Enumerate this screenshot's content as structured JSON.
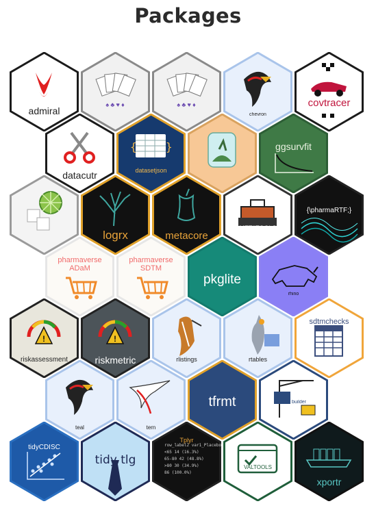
{
  "header": {
    "title": "Packages"
  },
  "packages": [
    {
      "label": "admiral",
      "border": "#1b1b1b",
      "fill": "#ffffff",
      "text": "#222222",
      "size": 14,
      "ty": 78,
      "icon": "red-bird-icon"
    },
    {
      "label": "",
      "border": "#8a8a8a",
      "fill": "#f1f1f1",
      "text": "#6a4ab0",
      "size": 11,
      "ty": 0,
      "icon": "playing-cards-icon"
    },
    {
      "label": "",
      "border": "#8a8a8a",
      "fill": "#f1f1f1",
      "text": "#6a4ab0",
      "size": 11,
      "ty": 0,
      "icon": "playing-cards-icon"
    },
    {
      "label": "chevron",
      "border": "#a9c4ea",
      "fill": "#e8f0fc",
      "text": "#222222",
      "size": 7,
      "ty": 88,
      "icon": "bird-icon"
    },
    {
      "label": "covtracer",
      "border": "#1b1b1b",
      "fill": "#ffffff",
      "text": "#c0143c",
      "size": 15,
      "ty": 66,
      "icon": "race-car-icon"
    },
    {
      "label": "datacutr",
      "border": "#1b1b1b",
      "fill": "#ffffff",
      "text": "#222222",
      "size": 14,
      "ty": 82,
      "icon": "scissors-icon"
    },
    {
      "label": "datasetjson",
      "border": "#e0a12a",
      "fill": "#163a6e",
      "text": "#f2b84b",
      "size": 9,
      "ty": 78,
      "icon": "json-grid-icon"
    },
    {
      "label": "",
      "border": "#d9a25e",
      "fill": "#f7c896",
      "text": "#3a6b4a",
      "size": 7,
      "ty": 0,
      "icon": "terrarium-icon"
    },
    {
      "label": "ggsurvfit",
      "border": "#2d5e36",
      "fill": "#3f7a46",
      "text": "#eaf2e2",
      "size": 14,
      "ty": 40,
      "icon": "survival-curve-icon"
    },
    {
      "label": "",
      "border": "#9a9a9a",
      "fill": "#f4f4f4",
      "text": "#555555",
      "size": 8,
      "ty": 0,
      "icon": "lime-ice-icon"
    },
    {
      "label": "logrx",
      "border": "#e0a12a",
      "fill": "#111111",
      "text": "#e8a33a",
      "size": 17,
      "ty": 78,
      "icon": "tree-icon"
    },
    {
      "label": "metacore",
      "border": "#e0a12a",
      "fill": "#111111",
      "text": "#e8a33a",
      "size": 15,
      "ty": 80,
      "icon": "apple-core-icon"
    },
    {
      "label": "METATOOLS",
      "border": "#333333",
      "fill": "#ffffff",
      "text": "#ffffff",
      "size": 9,
      "ty": 72,
      "icon": "toolbox-icon"
    },
    {
      "label": "{\\pharmaRTF;}",
      "border": "#222222",
      "fill": "#111111",
      "text": "#ffffff",
      "size": 10,
      "ty": 46,
      "icon": "wave-icon"
    },
    {
      "label": "pharmaverse ADaM",
      "border": "#e6e6e6",
      "fill": "#fcfaf6",
      "text": "#f06a6a",
      "size": 11,
      "ty": 28,
      "icon": "cart-icon"
    },
    {
      "label": "pharmaverse SDTM",
      "border": "#e6e6e6",
      "fill": "#fcfaf6",
      "text": "#f06a6a",
      "size": 11,
      "ty": 28,
      "icon": "cart-icon"
    },
    {
      "label": "pkglite",
      "border": "#137a6c",
      "fill": "#168a79",
      "text": "#ffffff",
      "size": 19,
      "ty": 52,
      "icon": "none"
    },
    {
      "label": "rhino",
      "border": "#8c81f2",
      "fill": "#8a7ff5",
      "text": "#111111",
      "size": 7,
      "ty": 80,
      "icon": "rhino-icon"
    },
    {
      "label": "riskassessment",
      "border": "#222222",
      "fill": "#e8e6dc",
      "text": "#222222",
      "size": 10,
      "ty": 84,
      "icon": "gauge-icon"
    },
    {
      "label": "riskmetric",
      "border": "#222222",
      "fill": "#4c5459",
      "text": "#ffffff",
      "size": 14,
      "ty": 82,
      "icon": "gauge-icon"
    },
    {
      "label": "rlistings",
      "border": "#a9c4ea",
      "fill": "#e8f0fc",
      "text": "#222222",
      "size": 9,
      "ty": 84,
      "icon": "hoopoe-icon"
    },
    {
      "label": "rtables",
      "border": "#a9c4ea",
      "fill": "#e8f0fc",
      "text": "#222222",
      "size": 9,
      "ty": 84,
      "icon": "cockatiel-icon"
    },
    {
      "label": "sdtmchecks",
      "border": "#f0a53a",
      "fill": "#ffffff",
      "text": "#3b4e7d",
      "size": 11,
      "ty": 28,
      "icon": "table-grid-icon"
    },
    {
      "label": "teal",
      "border": "#a9c4ea",
      "fill": "#e8f0fc",
      "text": "#222222",
      "size": 8,
      "ty": 94,
      "icon": "bird-icon"
    },
    {
      "label": "tern",
      "border": "#a9c4ea",
      "fill": "#e8f0fc",
      "text": "#222222",
      "size": 8,
      "ty": 94,
      "icon": "tern-bird-icon"
    },
    {
      "label": "tfrmt",
      "border": "#e0a12a",
      "fill": "#2b4a7c",
      "text": "#ffffff",
      "size": 20,
      "ty": 50,
      "icon": "none"
    },
    {
      "label": "tfrmt builder",
      "border": "#2b4a7c",
      "fill": "#ffffff",
      "text": "#2b4a7c",
      "size": 7,
      "ty": 58,
      "icon": "crane-icon"
    },
    {
      "label": "tidyCDISC",
      "border": "#2a6fc0",
      "fill": "#1e5aa8",
      "text": "#ffffff",
      "size": 10,
      "ty": 32,
      "icon": "scatter-icon"
    },
    {
      "label": "tidy tlg",
      "border": "#1f2a55",
      "fill": "#bfe0f5",
      "text": "#1f2a55",
      "size": 17,
      "ty": 46,
      "icon": "tie-icon"
    },
    {
      "label": "Tplyr",
      "border": "#222222",
      "fill": "#111111",
      "text": "#e8a33a",
      "size": 9,
      "ty": 22,
      "icon": "code-table-icon"
    },
    {
      "label": "VALTOOLS",
      "border": "#1f5e3a",
      "fill": "#ffffff",
      "text": "#1f5e3a",
      "size": 8,
      "ty": 62,
      "icon": "checkmark-icon"
    },
    {
      "label": "xportr",
      "border": "#111111",
      "fill": "#0f1a1c",
      "text": "#59c7c4",
      "size": 14,
      "ty": 80,
      "icon": "ship-icon"
    }
  ]
}
